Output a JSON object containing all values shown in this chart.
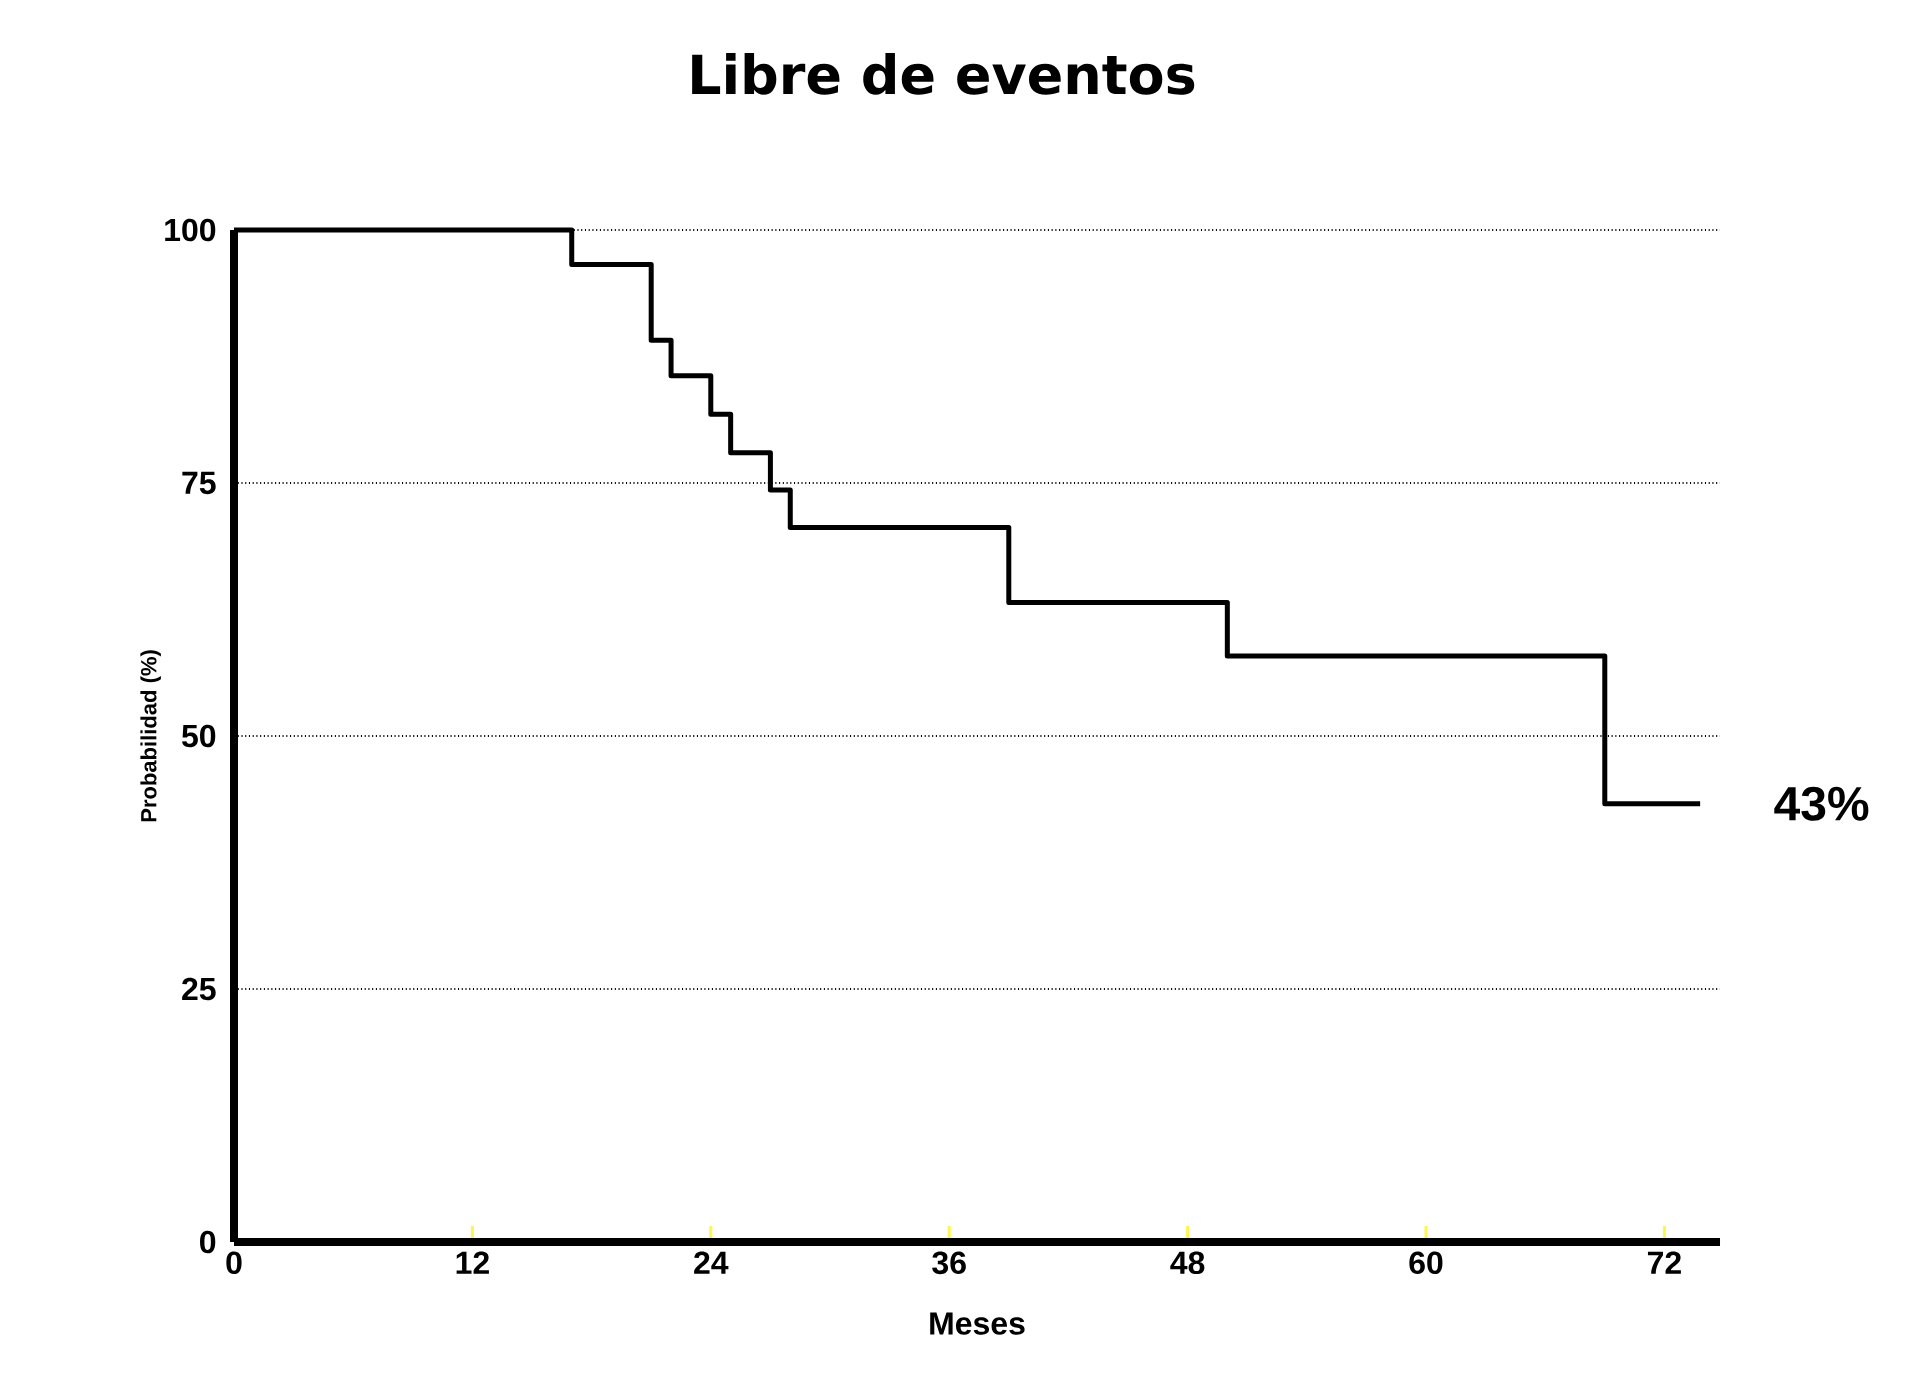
{
  "chart_data": {
    "type": "step",
    "title": "Libre de eventos",
    "xlabel": "Meses",
    "ylabel": "Probabilidad (%)",
    "x": [
      0,
      17,
      21,
      22,
      24,
      25,
      27,
      28,
      39,
      50,
      69,
      73.8
    ],
    "values": [
      100,
      96.6,
      89.1,
      85.6,
      81.8,
      78,
      74.3,
      70.6,
      63.2,
      57.9,
      43.3,
      43.3
    ],
    "color": "#000000",
    "xlim": [
      0,
      74.8
    ],
    "ylim": [
      0,
      100
    ],
    "xticks": [
      0,
      12,
      24,
      36,
      48,
      60,
      72
    ],
    "yticks": [
      0,
      25,
      50,
      75,
      100
    ],
    "grid": "y",
    "annotations": [
      {
        "text": "43%",
        "x": 73.8,
        "y": 43.3
      }
    ]
  }
}
